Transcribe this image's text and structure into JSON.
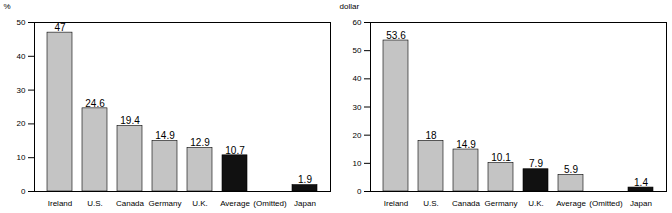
{
  "chart_data": [
    {
      "type": "bar",
      "y_label": "%",
      "categories": [
        "Ireland",
        "U.S.",
        "Canada",
        "Germany",
        "U.K.",
        "Average",
        "(Omitted)",
        "Japan"
      ],
      "values": [
        47,
        24.6,
        19.4,
        14.9,
        12.9,
        10.7,
        null,
        1.9
      ],
      "colors": [
        "#c4c4c4",
        "#c4c4c4",
        "#c4c4c4",
        "#c4c4c4",
        "#c4c4c4",
        "#111111",
        "#c4c4c4",
        "#111111"
      ],
      "ylim": [
        0,
        50
      ],
      "yticks": [
        0,
        10,
        20,
        30,
        40,
        50
      ],
      "data_labels": true
    },
    {
      "type": "bar",
      "y_label": "dollar",
      "categories": [
        "Ireland",
        "U.S.",
        "Canada",
        "Germany",
        "U.K.",
        "Average",
        "(Omitted)",
        "Japan"
      ],
      "values": [
        53.6,
        18,
        14.9,
        10.1,
        7.9,
        5.9,
        null,
        1.4
      ],
      "colors": [
        "#c4c4c4",
        "#c4c4c4",
        "#c4c4c4",
        "#c4c4c4",
        "#111111",
        "#c4c4c4",
        "#c4c4c4",
        "#111111"
      ],
      "ylim": [
        0,
        60
      ],
      "yticks": [
        0,
        10,
        20,
        30,
        40,
        50,
        60
      ],
      "data_labels": true
    }
  ]
}
